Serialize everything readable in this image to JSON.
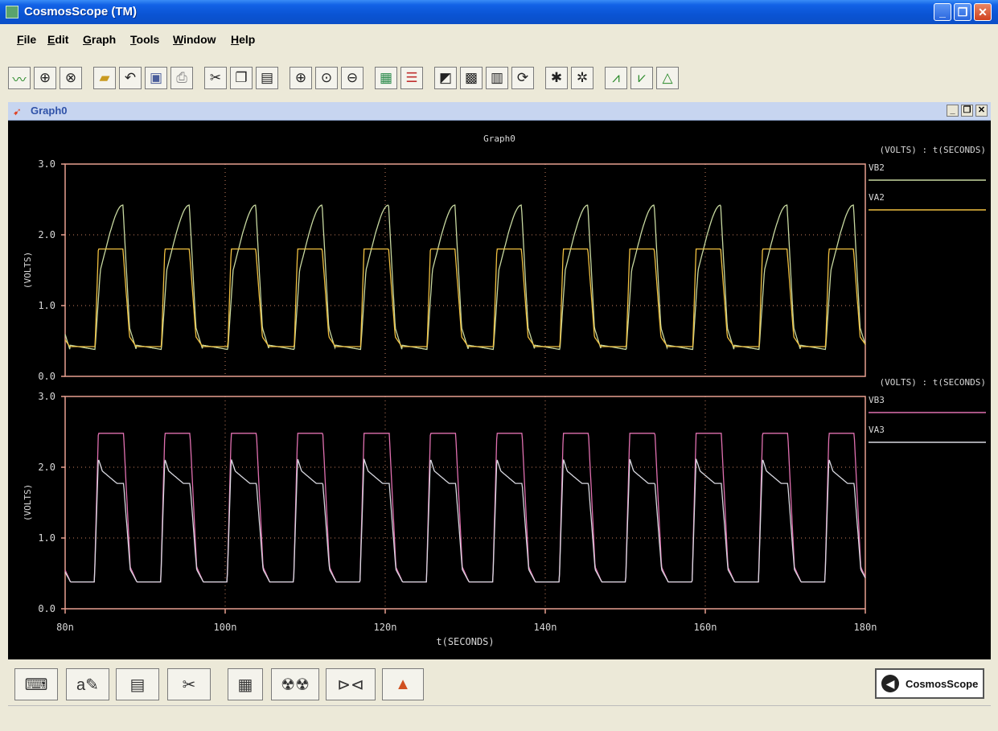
{
  "window": {
    "title": "CosmosScope (TM)"
  },
  "menu": [
    "File",
    "Edit",
    "Graph",
    "Tools",
    "Window",
    "Help"
  ],
  "toolbar_icons": [
    "waveform-icon",
    "globe-icon",
    "globe2-icon",
    "open-folder-icon",
    "undo-icon",
    "save-icon",
    "print-icon",
    "cut-icon",
    "copy-icon",
    "paste-icon",
    "zoom-in-icon",
    "zoom-fit-icon",
    "zoom-out-icon",
    "stack-icon",
    "panels-icon",
    "eraser-icon",
    "grid-icon",
    "bars-icon",
    "refresh-icon",
    "bug-icon",
    "bug2-icon",
    "measure-icon",
    "measure2-icon",
    "measure3-icon"
  ],
  "graph_window": {
    "title": "Graph0"
  },
  "chart_data": [
    {
      "type": "line",
      "title": "Graph0",
      "xlabel": "",
      "ylabel": "(VOLTS)",
      "axis_header": "(VOLTS) : t(SECONDS)",
      "xlim": [
        80,
        180
      ],
      "ylim": [
        0,
        3
      ],
      "yticks": [
        "0.0",
        "1.0",
        "2.0",
        "3.0"
      ],
      "grid": true,
      "period_ns": 8.3,
      "series": [
        {
          "name": "VB2",
          "color": "#c7d8a0",
          "low": 0.38,
          "high": 2.42
        },
        {
          "name": "VA2",
          "color": "#f0c040",
          "low": 0.42,
          "high": 1.8
        }
      ]
    },
    {
      "type": "line",
      "title": "",
      "xlabel": "t(SECONDS)",
      "ylabel": "(VOLTS)",
      "axis_header": "(VOLTS) : t(SECONDS)",
      "xlim": [
        80,
        180
      ],
      "ylim": [
        0,
        3
      ],
      "yticks": [
        "0.0",
        "1.0",
        "2.0",
        "3.0"
      ],
      "xticks": [
        "80n",
        "100n",
        "120n",
        "140n",
        "160n",
        "180n"
      ],
      "grid": true,
      "period_ns": 8.3,
      "series": [
        {
          "name": "VB3",
          "color": "#e070b0",
          "low": 0.38,
          "high": 2.48
        },
        {
          "name": "VA3",
          "color": "#d8d8e0",
          "low": 0.38,
          "high": 2.12
        }
      ]
    }
  ],
  "bottom_tools": [
    "keyboard-icon",
    "annotate-icon",
    "waveform-view-icon",
    "scissors-icon",
    "calculator-icon",
    "radiation-icon",
    "logic-icon",
    "matlab-icon"
  ],
  "brand": {
    "label": "CosmosScope"
  }
}
